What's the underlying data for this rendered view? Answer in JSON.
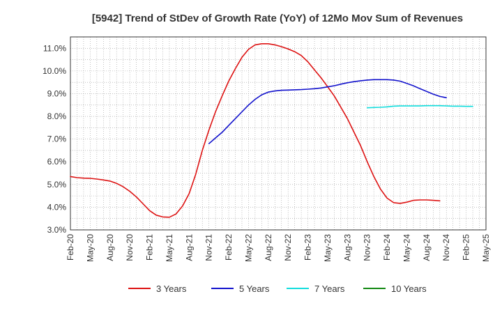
{
  "chart_data": {
    "type": "line",
    "title": "[5942]  Trend of StDev of Growth Rate (YoY) of 12Mo Mov Sum of Revenues",
    "xlabel": "",
    "ylabel": "",
    "ylim": [
      3.0,
      11.5
    ],
    "y_ticks": [
      3.0,
      4.0,
      5.0,
      6.0,
      7.0,
      8.0,
      9.0,
      10.0,
      11.0
    ],
    "y_tick_labels": [
      "3.0%",
      "4.0%",
      "5.0%",
      "6.0%",
      "7.0%",
      "8.0%",
      "9.0%",
      "10.0%",
      "11.0%"
    ],
    "x_tick_labels": [
      "Feb-20",
      "May-20",
      "Aug-20",
      "Nov-20",
      "Feb-21",
      "May-21",
      "Aug-21",
      "Nov-21",
      "Feb-22",
      "May-22",
      "Aug-22",
      "Nov-22",
      "Feb-23",
      "May-23",
      "Aug-23",
      "Nov-23",
      "Feb-24",
      "May-24",
      "Aug-24",
      "Nov-24",
      "Feb-25",
      "May-25"
    ],
    "grid": true,
    "legend_position": "bottom",
    "series": [
      {
        "name": "3 Years",
        "color": "#dd1111",
        "start_index": 0,
        "values": [
          5.35,
          5.3,
          5.28,
          5.27,
          5.24,
          5.2,
          5.15,
          5.05,
          4.9,
          4.7,
          4.45,
          4.15,
          3.85,
          3.65,
          3.57,
          3.56,
          3.7,
          4.05,
          4.6,
          5.45,
          6.5,
          7.4,
          8.2,
          8.9,
          9.55,
          10.1,
          10.6,
          10.95,
          11.15,
          11.2,
          11.2,
          11.15,
          11.07,
          10.97,
          10.85,
          10.68,
          10.4,
          10.05,
          9.7,
          9.3,
          8.9,
          8.4,
          7.9,
          7.3,
          6.7,
          6.0,
          5.35,
          4.8,
          4.4,
          4.2,
          4.17,
          4.22,
          4.3,
          4.32,
          4.32,
          4.3,
          4.28
        ]
      },
      {
        "name": "5 Years",
        "color": "#1111cc",
        "start_index": 21,
        "values": [
          6.8,
          7.05,
          7.3,
          7.6,
          7.9,
          8.2,
          8.5,
          8.75,
          8.95,
          9.07,
          9.12,
          9.15,
          9.16,
          9.17,
          9.18,
          9.2,
          9.22,
          9.25,
          9.3,
          9.35,
          9.42,
          9.48,
          9.53,
          9.57,
          9.6,
          9.62,
          9.62,
          9.62,
          9.6,
          9.55,
          9.45,
          9.35,
          9.22,
          9.1,
          8.98,
          8.88,
          8.82
        ]
      },
      {
        "name": "7 Years",
        "color": "#11dddd",
        "start_index": 45,
        "values": [
          8.38,
          8.39,
          8.4,
          8.42,
          8.45,
          8.46,
          8.46,
          8.46,
          8.46,
          8.47,
          8.47,
          8.47,
          8.46,
          8.45,
          8.45,
          8.44,
          8.44
        ]
      },
      {
        "name": "10 Years",
        "color": "#118811",
        "start_index": 0,
        "values": []
      }
    ]
  }
}
